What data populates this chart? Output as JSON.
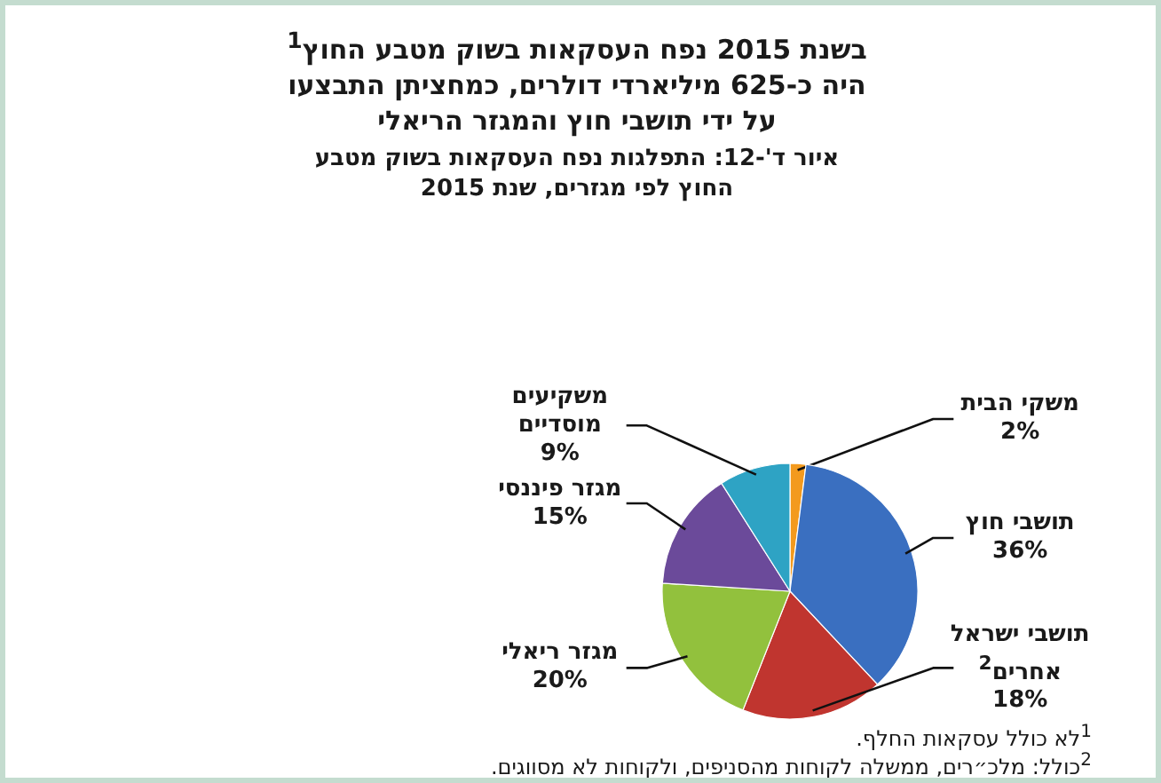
{
  "chart_data": {
    "type": "pie",
    "title": "בשנת 2015 נפח העסקאות בשוק מטבע החוץ$^{1}$ היה כ-625 מיליארדי דולרים, כמחציתן התבצעו על ידי תושבי חוץ והמגזר הריאלי",
    "subtitle": "איור ד'-12: התפלגות נפח העסקאות בשוק מטבע החוץ לפי מגזרים, שנת 2015",
    "categories": [
      "משקי הבית",
      "תושבי חוץ",
      "תושבי ישראל אחרים$^{2}$",
      "מגזר ריאלי",
      "מגזר פיננסי",
      "משקיעים מוסדיים"
    ],
    "values": [
      2,
      36,
      18,
      20,
      15,
      9
    ],
    "value_labels": [
      "2%",
      "36%",
      "18%",
      "20%",
      "15%",
      "9%"
    ],
    "colors": [
      "#f39a1e",
      "#3a6fc0",
      "#c0352f",
      "#92c13d",
      "#6b4a9a",
      "#2ea3c4"
    ],
    "annotations": [
      "$^{1}$לא כולל עסקאות החלף.",
      "$^{2}$כולל: מלכ״רים, ממשלה לקוחות מהסניפים, ולקוחות לא מסווגים."
    ]
  }
}
